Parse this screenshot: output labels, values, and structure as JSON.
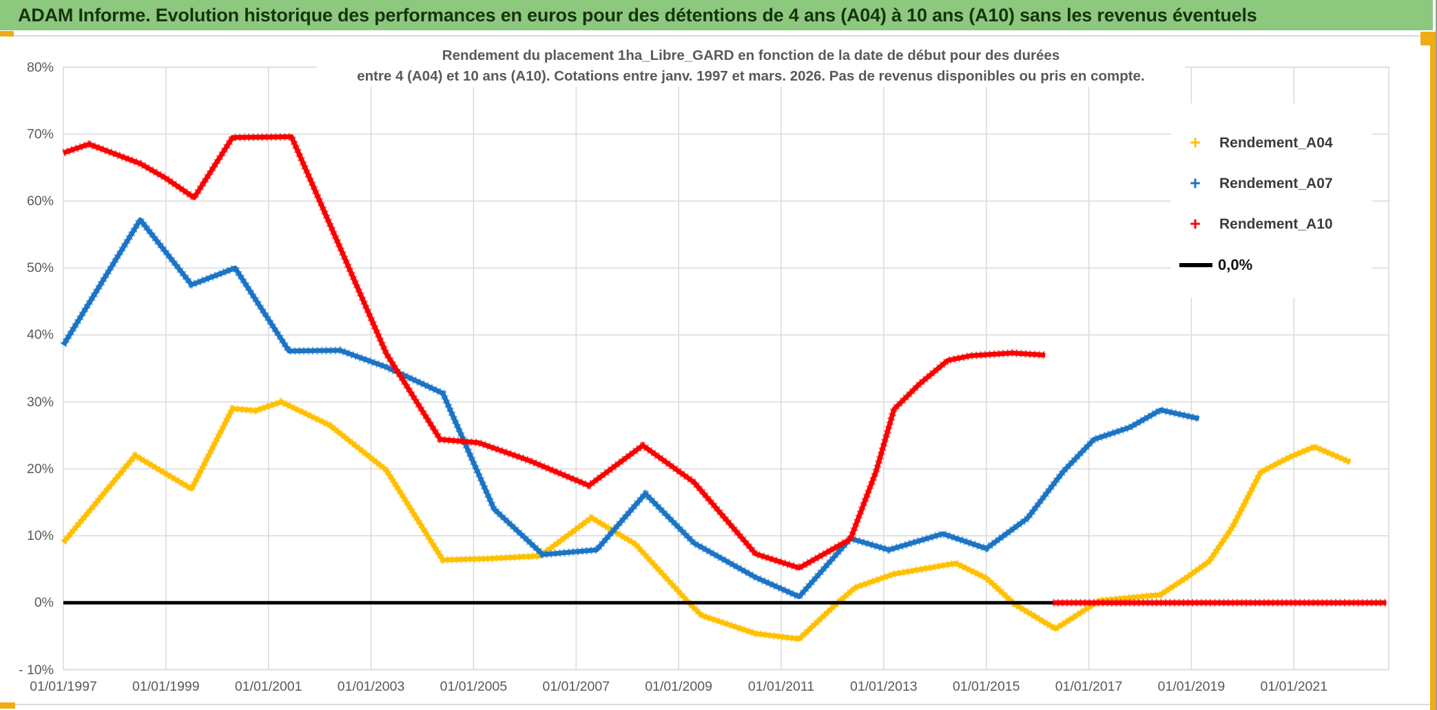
{
  "window": {
    "title": "ADAM Informe. Evolution historique des performances en euros pour des détentions de 4 ans (A04) à 10 ans (A10) sans les revenus éventuels"
  },
  "theme": {
    "header_bg": "#8CC87E",
    "header_text": "#17330D",
    "accent_orange": "#F0AC15",
    "edge_gray": "#9B9B9B",
    "hairline": "#D9D9D9",
    "grid_color": "#D9D9D9",
    "axis_text": "#595959",
    "plot_bg": "#FFFFFF"
  },
  "chart_data": {
    "type": "line",
    "title_lines": [
      "Rendement du placement 1ha_Libre_GARD en fonction de la date de début pour des durées",
      "entre 4 (A04) et 10 ans (A10). Cotations entre janv. 1997 et mars. 2026. Pas de revenus disponibles ou pris en compte."
    ],
    "grid": true,
    "legend_position": "right-inside",
    "xlabel": "",
    "ylabel": "",
    "x_range_years": [
      1997,
      2022.85
    ],
    "ylim": [
      -10,
      80
    ],
    "x_tick_years": [
      1997,
      1999,
      2001,
      2003,
      2005,
      2007,
      2009,
      2011,
      2013,
      2015,
      2017,
      2019,
      2021
    ],
    "x_tick_labels": [
      "01/01/1997",
      "01/01/1999",
      "01/01/2001",
      "01/01/2003",
      "01/01/2005",
      "01/01/2007",
      "01/01/2009",
      "01/01/2011",
      "01/01/2013",
      "01/01/2015",
      "01/01/2017",
      "01/01/2019",
      "01/01/2021"
    ],
    "y_tick_values": [
      80,
      70,
      60,
      50,
      40,
      30,
      20,
      10,
      0,
      -10
    ],
    "y_tick_labels": [
      "80%",
      "70%",
      "60%",
      "50%",
      "40%",
      "30%",
      "20%",
      "10%",
      "0%",
      "- 10%"
    ],
    "series": [
      {
        "name": "Rendement_A04",
        "color": "#FFC000",
        "marker": "+",
        "line_width": 7,
        "segments": [
          [
            [
              1997,
              9
            ],
            [
              1998.4,
              22
            ],
            [
              1999.5,
              17
            ],
            [
              2000.3,
              29
            ],
            [
              2000.75,
              28.7
            ],
            [
              2001.25,
              30
            ],
            [
              2002.2,
              26.5
            ],
            [
              2003.3,
              19.8
            ],
            [
              2004.4,
              6.4
            ],
            [
              2005.3,
              6.6
            ],
            [
              2006.3,
              7
            ],
            [
              2007.3,
              12.7
            ],
            [
              2008.15,
              8.8
            ],
            [
              2009.2,
              0
            ],
            [
              2009.45,
              -1.9
            ],
            [
              2010.5,
              -4.6
            ],
            [
              2011.35,
              -5.4
            ],
            [
              2012.1,
              0
            ],
            [
              2012.45,
              2.3
            ],
            [
              2013.2,
              4.3
            ],
            [
              2014.4,
              5.9
            ],
            [
              2015,
              3.7
            ],
            [
              2015.55,
              -0.2
            ],
            [
              2016.35,
              -3.9
            ],
            [
              2017.2,
              0.3
            ],
            [
              2017.85,
              0.8
            ],
            [
              2018.4,
              1.2
            ],
            [
              2018.95,
              4
            ],
            [
              2019.35,
              6.2
            ],
            [
              2019.8,
              11.3
            ],
            [
              2020.35,
              19.5
            ],
            [
              2020.9,
              21.7
            ],
            [
              2021.4,
              23.3
            ],
            [
              2022.1,
              21
            ]
          ]
        ]
      },
      {
        "name": "Rendement_A07",
        "color": "#1B74C5",
        "marker": "+",
        "line_width": 7,
        "segments": [
          [
            [
              1997,
              38.5
            ],
            [
              1998.5,
              57.2
            ],
            [
              1999.5,
              47.5
            ],
            [
              2000.35,
              50
            ],
            [
              2001.4,
              37.6
            ],
            [
              2002.4,
              37.7
            ],
            [
              2003.3,
              35.2
            ],
            [
              2004.4,
              31.3
            ],
            [
              2005.4,
              14
            ],
            [
              2006.35,
              7.2
            ],
            [
              2007.4,
              7.9
            ],
            [
              2008.35,
              16.3
            ],
            [
              2009.3,
              8.9
            ],
            [
              2010.5,
              3.8
            ],
            [
              2011.35,
              0.9
            ],
            [
              2012.35,
              9.6
            ],
            [
              2013.1,
              7.9
            ],
            [
              2014.15,
              10.3
            ],
            [
              2015,
              8.1
            ],
            [
              2015.8,
              12.6
            ],
            [
              2016.5,
              19.6
            ],
            [
              2017.1,
              24.4
            ],
            [
              2017.8,
              26.2
            ],
            [
              2018.4,
              28.8
            ],
            [
              2019.15,
              27.5
            ]
          ]
        ]
      },
      {
        "name": "Rendement_A10",
        "color": "#FB0000",
        "marker": "+",
        "line_width": 7,
        "segments": [
          [
            [
              1997,
              67.2
            ],
            [
              1997.5,
              68.5
            ],
            [
              1998.5,
              65.6
            ],
            [
              1999,
              63.4
            ],
            [
              1999.55,
              60.5
            ],
            [
              2000.3,
              69.5
            ],
            [
              2001.45,
              69.6
            ],
            [
              2002.4,
              53
            ],
            [
              2003.3,
              37.2
            ],
            [
              2004.35,
              24.4
            ],
            [
              2005.1,
              23.9
            ],
            [
              2006.1,
              21.2
            ],
            [
              2007.25,
              17.5
            ],
            [
              2008.3,
              23.5
            ],
            [
              2009.3,
              18
            ],
            [
              2010.5,
              7.3
            ],
            [
              2011.35,
              5.2
            ],
            [
              2012.35,
              9.5
            ],
            [
              2012.85,
              19.6
            ],
            [
              2013.2,
              28.9
            ],
            [
              2013.7,
              32.7
            ],
            [
              2014.25,
              36.2
            ],
            [
              2014.7,
              36.9
            ],
            [
              2015.5,
              37.3
            ],
            [
              2016.15,
              37
            ]
          ],
          [
            [
              2016.3,
              0
            ],
            [
              2022.8,
              0
            ]
          ]
        ]
      },
      {
        "name": "0,0%",
        "color": "#000000",
        "marker": "line",
        "line_width": 5,
        "segments": [
          [
            [
              1997,
              0
            ],
            [
              2022.8,
              0
            ]
          ]
        ]
      }
    ]
  }
}
